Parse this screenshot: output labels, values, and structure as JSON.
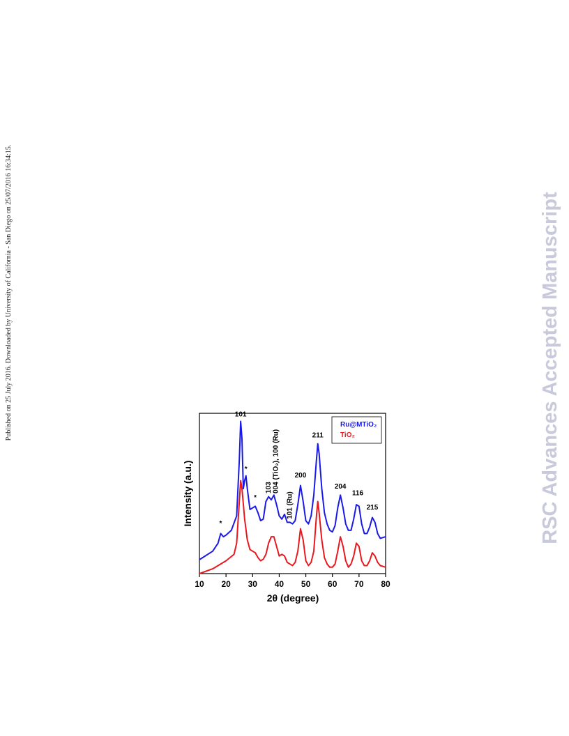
{
  "sidebar": "Published on 25 July 2016. Downloaded by University of California - San Diego on 25/07/2016 16:34:15.",
  "watermark": "RSC Advances Accepted Manuscript",
  "chart_data": {
    "type": "line",
    "xlabel": "2θ (degree)",
    "ylabel": "Intensity (a.u.)",
    "xlim": [
      10,
      80
    ],
    "xticks": [
      10,
      20,
      30,
      40,
      50,
      60,
      70,
      80
    ],
    "ylim": [
      0,
      100
    ],
    "legend": "top-right",
    "series": [
      {
        "name": "Ru@MTiO₂",
        "color": "#1a1ae6",
        "x": [
          10,
          15,
          17,
          18,
          19,
          20,
          22,
          24,
          25,
          25.5,
          26,
          26.5,
          27,
          27.5,
          28,
          29,
          30,
          31,
          32,
          33,
          34,
          35,
          36,
          37,
          38,
          39,
          40,
          41,
          42,
          43,
          44,
          45,
          46,
          47,
          48,
          49,
          50,
          51,
          52,
          53,
          54,
          54.5,
          55,
          56,
          57,
          58,
          59,
          60,
          61,
          62,
          63,
          64,
          65,
          66,
          67,
          68,
          69,
          70,
          71,
          72,
          73,
          74,
          75,
          76,
          77,
          78,
          80
        ],
        "values": [
          8.7,
          14,
          19,
          25,
          23,
          24,
          27,
          36,
          71,
          95,
          84,
          53,
          58,
          61,
          53,
          40,
          41,
          42,
          38,
          33,
          34,
          45,
          48,
          46,
          49,
          43,
          36,
          34,
          37,
          32,
          32,
          31,
          33,
          43,
          55,
          45,
          33,
          31,
          36,
          49,
          71,
          81,
          75,
          53,
          38,
          31,
          27,
          26,
          30,
          41,
          49,
          41,
          31,
          27,
          27,
          34,
          43,
          42,
          31,
          25,
          25,
          29,
          35,
          32,
          25,
          22,
          23
        ]
      },
      {
        "name": "TiO₂",
        "color": "#e8191e",
        "x": [
          10,
          15,
          20,
          23,
          24,
          25,
          25.5,
          26,
          27,
          28,
          29,
          30,
          31,
          32,
          33,
          34,
          35,
          36,
          37,
          38,
          39,
          40,
          41,
          42,
          43,
          44,
          45,
          46,
          47,
          48,
          49,
          50,
          51,
          52,
          53,
          54,
          54.5,
          55,
          56,
          57,
          58,
          59,
          60,
          61,
          62,
          63,
          64,
          65,
          66,
          67,
          68,
          69,
          70,
          71,
          72,
          73,
          74,
          75,
          76,
          77,
          78,
          80
        ],
        "values": [
          0,
          3,
          8,
          12,
          19,
          45,
          58,
          53,
          34,
          21,
          15,
          14,
          13,
          10,
          8,
          9,
          12,
          19,
          23,
          23,
          17,
          11,
          12,
          11,
          7,
          6,
          5,
          7,
          14,
          28,
          21,
          8,
          5,
          7,
          14,
          36,
          45,
          38,
          21,
          10,
          6,
          4,
          4,
          6,
          14,
          23,
          17,
          8,
          4,
          6,
          11,
          19,
          17,
          8,
          5,
          5,
          8,
          13,
          11,
          7,
          5,
          4
        ]
      }
    ],
    "annotations": [
      {
        "text": "101",
        "x": 25.5,
        "y": 98
      },
      {
        "text": "*",
        "x": 18,
        "y": 30
      },
      {
        "text": "*",
        "x": 27.5,
        "y": 64
      },
      {
        "text": "*",
        "x": 31,
        "y": 46
      },
      {
        "text": "103",
        "x": 36,
        "y": 50,
        "orientation": "vertical"
      },
      {
        "text": "004 (TiO₂), 100 (Ru)",
        "x": 38.7,
        "y": 50,
        "orientation": "vertical"
      },
      {
        "text": "101 (Ru)",
        "x": 44,
        "y": 34,
        "orientation": "vertical"
      },
      {
        "text": "200",
        "x": 48,
        "y": 60
      },
      {
        "text": "211",
        "x": 54.5,
        "y": 85
      },
      {
        "text": "204",
        "x": 63,
        "y": 53
      },
      {
        "text": "116",
        "x": 69.5,
        "y": 49
      },
      {
        "text": "215",
        "x": 75,
        "y": 40
      }
    ]
  }
}
